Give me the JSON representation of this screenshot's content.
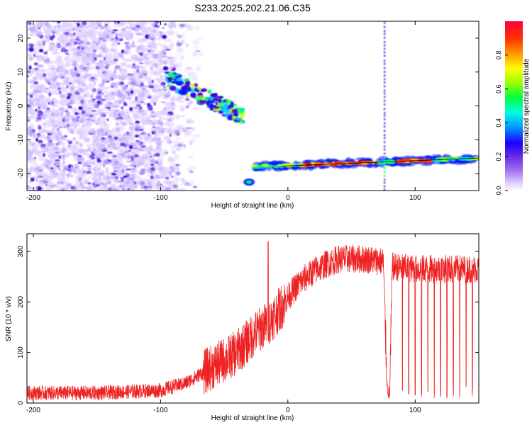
{
  "page_title": "S233.2025.202.21.06.C35",
  "colors": {
    "spectrogram_palette": [
      "#b7a8ff",
      "#6a2ce6",
      "#3a00d0",
      "#0015ff",
      "#00c8ff",
      "#00ff66",
      "#c8ff00",
      "#ffb000",
      "#ff3000",
      "#e00000"
    ],
    "snr_line": "#ee2222",
    "axis": "#000000"
  },
  "chart_data": [
    {
      "type": "heatmap",
      "title": "S233.2025.202.21.06.C35",
      "xlabel": "Height of straight line (km)",
      "ylabel": "Frequency (Hz)",
      "xlim": [
        -205,
        150
      ],
      "ylim": [
        -25,
        25
      ],
      "xticks": [
        -200,
        -100,
        0,
        100
      ],
      "yticks": [
        -20,
        -10,
        0,
        10,
        20
      ],
      "grid": false,
      "colorbar": {
        "label": "Normalized spectral amplitude",
        "range": [
          0,
          1
        ],
        "ticks": [
          "0.0",
          "0.2",
          "0.4",
          "0.6",
          "0.8"
        ]
      },
      "features": {
        "noise_region": {
          "x": [
            -205,
            -78
          ],
          "y": [
            -25,
            25
          ],
          "amplitude": 0.15
        },
        "slanted_trace": {
          "x": [
            -95,
            -35
          ],
          "y": [
            8,
            -3
          ],
          "amplitude": 0.35
        },
        "low_blob": {
          "x": [
            -33,
            -28
          ],
          "y": [
            -22.5,
            -22.5
          ],
          "amplitude": 0.4
        },
        "horizontal_trace": {
          "x": [
            -28,
            150
          ],
          "y": [
            -18,
            -15.5
          ],
          "amplitude": 0.85
        },
        "vertical_streak": {
          "x": 76,
          "y": [
            -25,
            25
          ],
          "amplitude": 0.2
        }
      }
    },
    {
      "type": "line",
      "xlabel": "Height of straight line (km)",
      "ylabel": "SNR (10 * v/v)",
      "xlim": [
        -205,
        150
      ],
      "ylim": [
        0,
        335
      ],
      "xticks": [
        -200,
        -100,
        0,
        100
      ],
      "yticks": [
        0,
        100,
        200,
        300
      ],
      "grid": false,
      "series": [
        {
          "envelope": {
            "x": [
              -205,
              -150,
              -100,
              -80,
              -60,
              -40,
              -25,
              -15,
              -5,
              0,
              10,
              20,
              30,
              40,
              60,
              75,
              78,
              80,
              82,
              100,
              150
            ],
            "y": [
              20,
              20,
              25,
              40,
              70,
              100,
              140,
              160,
              190,
              210,
              240,
              260,
              275,
              285,
              285,
              280,
              30,
              15,
              270,
              265,
              265
            ]
          },
          "spike_x": [
            -15.5,
            90,
            95,
            100,
            105,
            110,
            115,
            120,
            125,
            130,
            135,
            140,
            145
          ]
        }
      ]
    }
  ]
}
